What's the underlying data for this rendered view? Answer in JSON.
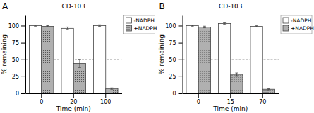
{
  "chart_data": [
    {
      "type": "bar",
      "title": "CD-103",
      "panel_label": "A",
      "xlabel": "Time (min)",
      "ylabel": "% remaining",
      "categories": [
        "0",
        "20",
        "100"
      ],
      "series": [
        {
          "name": "-NADPH",
          "color": "#ffffff",
          "values": [
            100,
            96,
            100
          ],
          "error": [
            0.8,
            2.0,
            1.2
          ]
        },
        {
          "name": "+NADPH",
          "color": "#b0b0b0",
          "values": [
            99,
            44,
            7
          ],
          "error": [
            1.0,
            6.0,
            1.0
          ]
        }
      ],
      "ylim": [
        0,
        115
      ],
      "yticks": [
        0,
        25,
        50,
        75,
        100
      ],
      "reference_line": 50,
      "grid": false,
      "legend": "upper right"
    },
    {
      "type": "bar",
      "title": "CD-103",
      "panel_label": "B",
      "xlabel": "Time (min)",
      "ylabel": "% remaining",
      "categories": [
        "0",
        "15",
        "70"
      ],
      "series": [
        {
          "name": "-NADPH",
          "color": "#ffffff",
          "values": [
            100,
            103,
            99
          ],
          "error": [
            0.8,
            1.2,
            0.8
          ]
        },
        {
          "name": "+NADPH",
          "color": "#b0b0b0",
          "values": [
            98,
            28,
            6
          ],
          "error": [
            1.2,
            2.0,
            0.8
          ]
        }
      ],
      "ylim": [
        0,
        115
      ],
      "yticks": [
        0,
        25,
        50,
        75,
        100
      ],
      "reference_line": 50,
      "grid": false,
      "legend": "upper right"
    }
  ]
}
